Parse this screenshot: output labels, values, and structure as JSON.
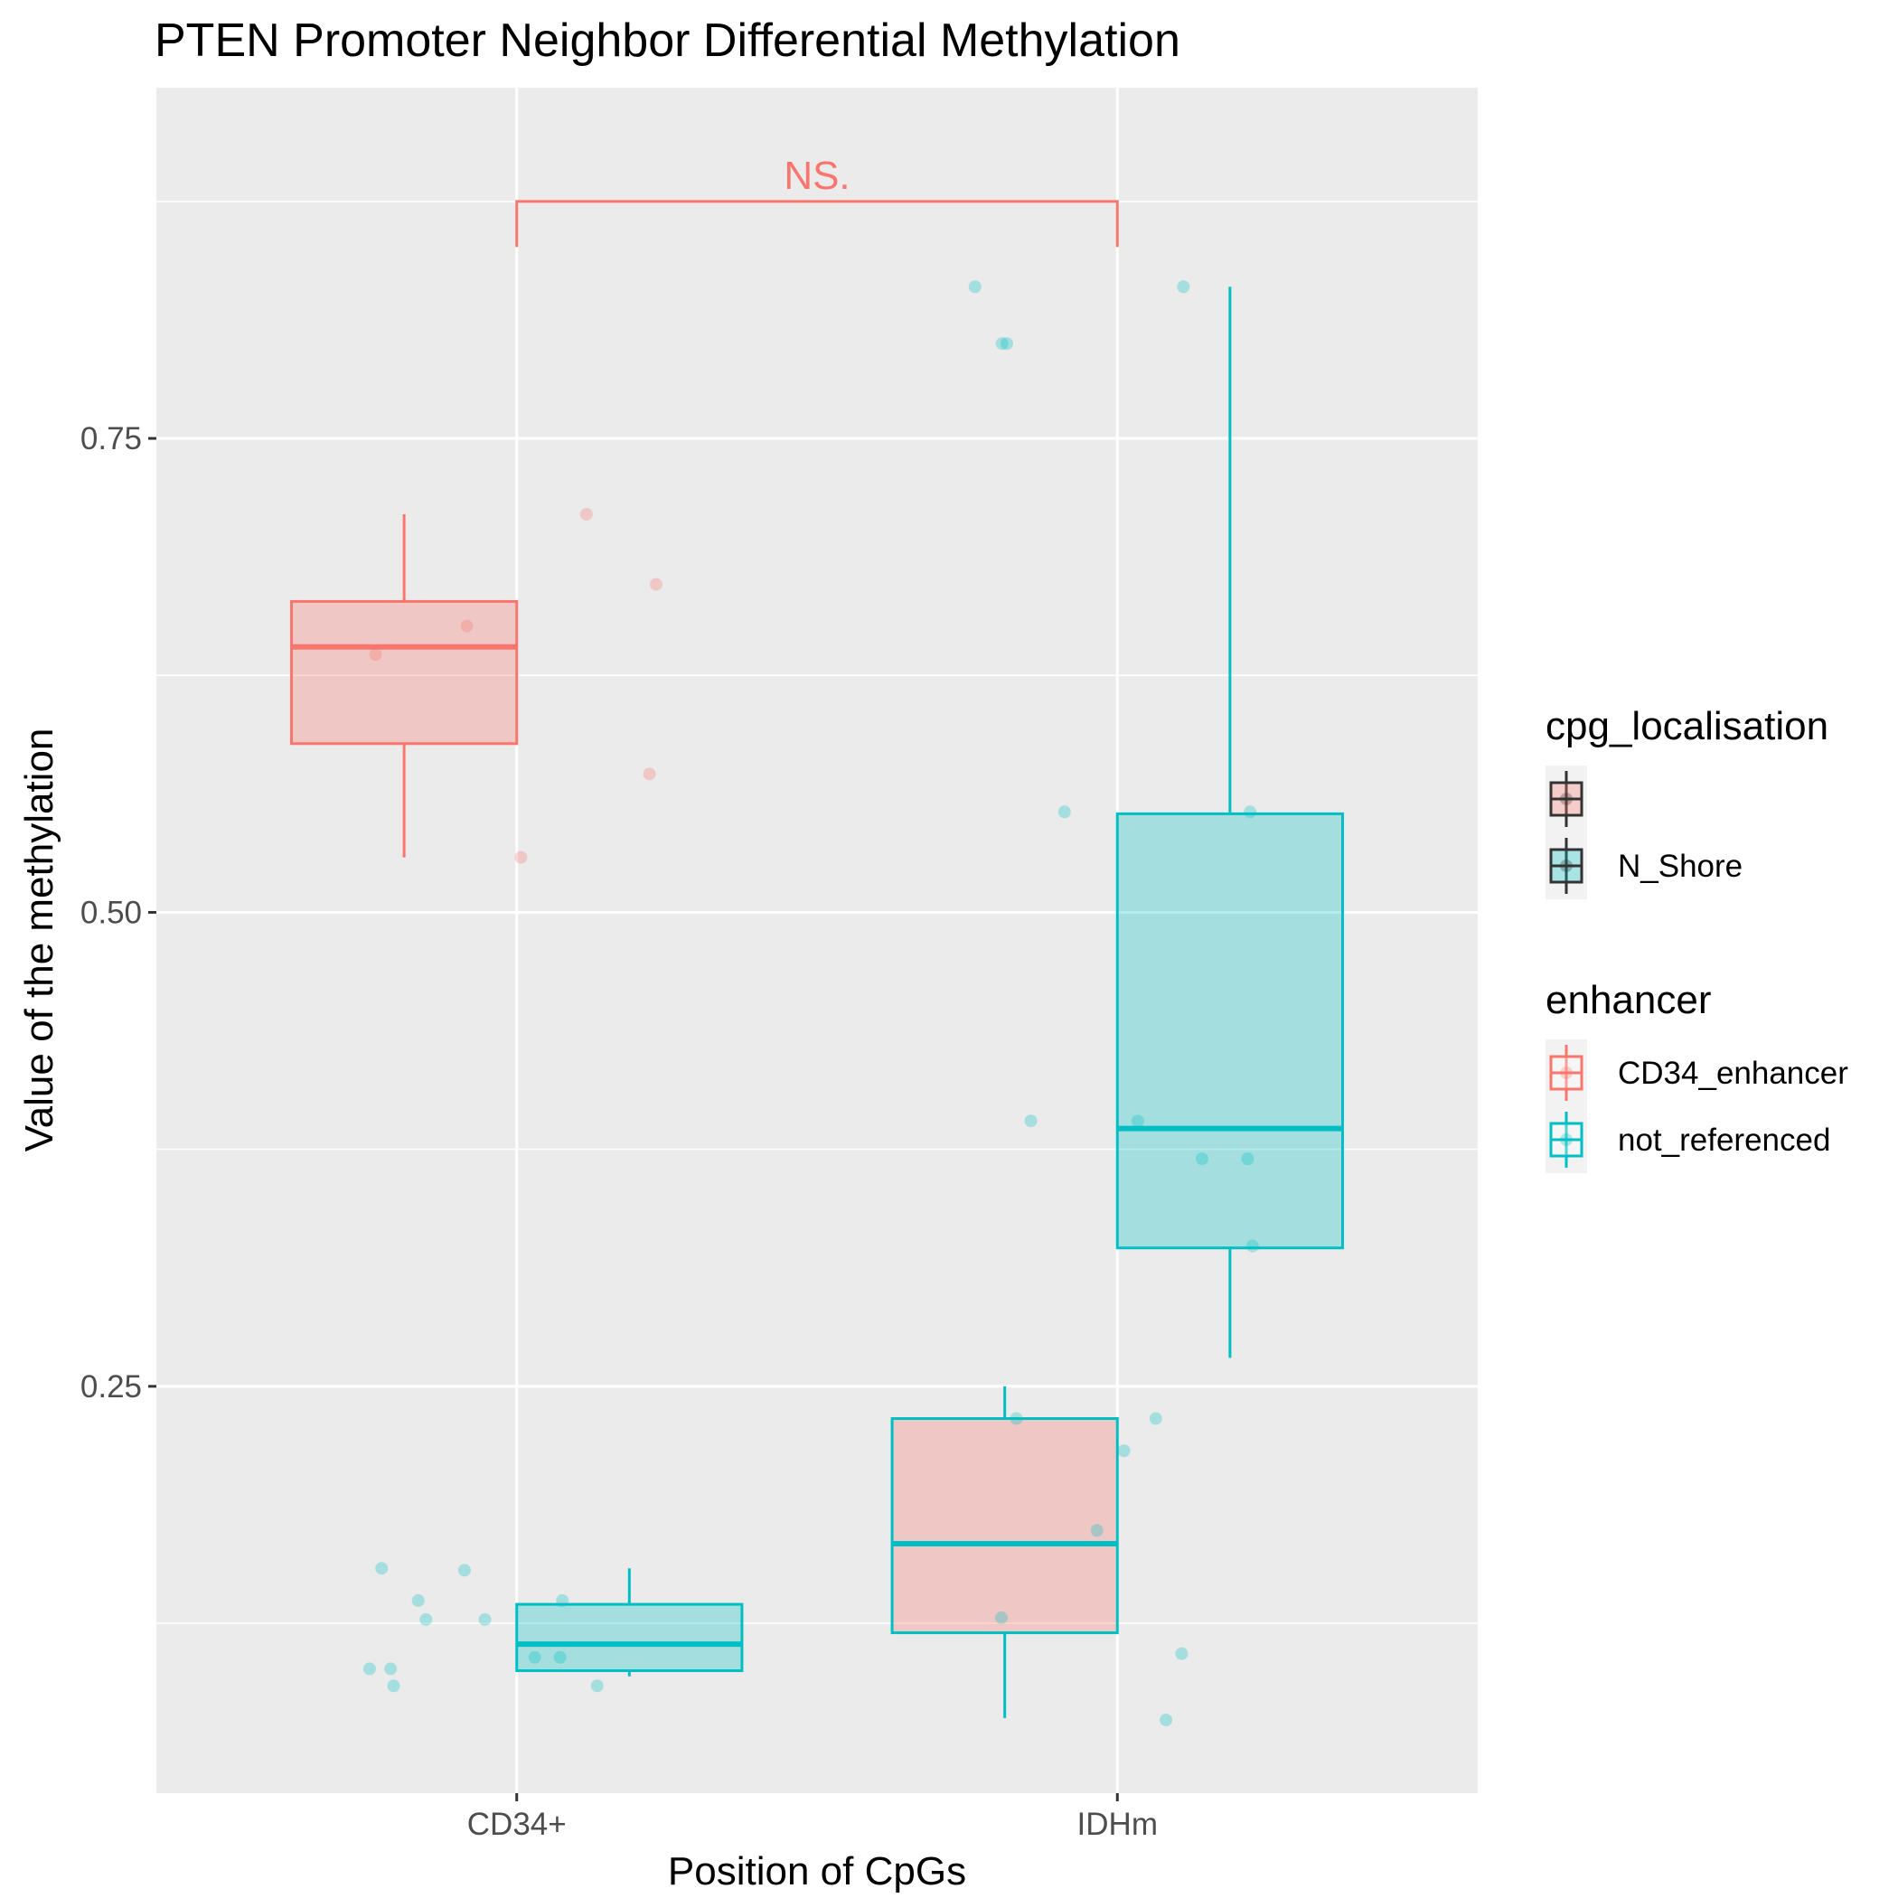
{
  "chart_data": {
    "type": "box",
    "title": "PTEN Promoter Neighbor Differential Methylation",
    "xlabel": "Position of CpGs",
    "ylabel": "Value of the methylation",
    "categories": [
      "CD34+",
      "IDHm"
    ],
    "ylim": [
      0.0354,
      0.935
    ],
    "y_ticks": [
      0.25,
      0.5,
      0.75
    ],
    "y_tick_labels": [
      "0.25",
      "0.50",
      "0.75"
    ],
    "y_minor_ticks": [
      0.125,
      0.375,
      0.625,
      0.875
    ],
    "grid": true,
    "legend_position": "right",
    "colors": {
      "CD34_enhancer": "#F8766D",
      "not_referenced": "#00BFC4",
      "neutral": "#333333"
    },
    "legends": [
      {
        "title": "cpg_localisation",
        "items": [
          {
            "label": "",
            "fill": "#F8766D"
          },
          {
            "label": "N_Shore",
            "fill": "#00BFC4"
          }
        ]
      },
      {
        "title": "enhancer",
        "items": [
          {
            "label": "CD34_enhancer",
            "color": "#F8766D"
          },
          {
            "label": "not_referenced",
            "color": "#00BFC4"
          }
        ]
      }
    ],
    "boxes": [
      {
        "category": "CD34+",
        "group": 0,
        "fill_key": "CD34_enhancer",
        "line_key": "CD34_enhancer",
        "whisker_low": 0.529,
        "q1": 0.589,
        "median": 0.64,
        "q3": 0.664,
        "whisker_high": 0.71
      },
      {
        "category": "CD34+",
        "group": 1,
        "fill_key": "not_referenced",
        "line_key": "not_referenced",
        "whisker_low": 0.097,
        "q1": 0.1,
        "median": 0.114,
        "q3": 0.135,
        "whisker_high": 0.154
      },
      {
        "category": "IDHm",
        "group": 0,
        "fill_key": "CD34_enhancer",
        "line_key": "not_referenced",
        "whisker_low": 0.075,
        "q1": 0.12,
        "median": 0.167,
        "q3": 0.233,
        "whisker_high": 0.25
      },
      {
        "category": "IDHm",
        "group": 1,
        "fill_key": "not_referenced",
        "line_key": "not_referenced",
        "whisker_low": 0.265,
        "q1": 0.323,
        "median": 0.386,
        "q3": 0.552,
        "whisker_high": 0.83
      }
    ],
    "points": [
      {
        "x": 0.765,
        "y": 0.636,
        "color_key": "CD34_enhancer"
      },
      {
        "x": 0.917,
        "y": 0.651,
        "color_key": "CD34_enhancer"
      },
      {
        "x": 1.007,
        "y": 0.529,
        "color_key": "CD34_enhancer"
      },
      {
        "x": 1.116,
        "y": 0.71,
        "color_key": "CD34_enhancer"
      },
      {
        "x": 1.221,
        "y": 0.573,
        "color_key": "CD34_enhancer"
      },
      {
        "x": 1.232,
        "y": 0.673,
        "color_key": "CD34_enhancer"
      },
      {
        "x": 0.775,
        "y": 0.154,
        "color_key": "not_referenced"
      },
      {
        "x": 0.755,
        "y": 0.101,
        "color_key": "not_referenced"
      },
      {
        "x": 0.79,
        "y": 0.101,
        "color_key": "not_referenced"
      },
      {
        "x": 0.795,
        "y": 0.092,
        "color_key": "not_referenced"
      },
      {
        "x": 0.836,
        "y": 0.137,
        "color_key": "not_referenced"
      },
      {
        "x": 0.849,
        "y": 0.127,
        "color_key": "not_referenced"
      },
      {
        "x": 0.913,
        "y": 0.153,
        "color_key": "not_referenced"
      },
      {
        "x": 0.947,
        "y": 0.127,
        "color_key": "not_referenced"
      },
      {
        "x": 1.03,
        "y": 0.107,
        "color_key": "not_referenced"
      },
      {
        "x": 1.072,
        "y": 0.107,
        "color_key": "not_referenced"
      },
      {
        "x": 1.076,
        "y": 0.137,
        "color_key": "not_referenced"
      },
      {
        "x": 1.134,
        "y": 0.092,
        "color_key": "not_referenced"
      },
      {
        "x": 1.763,
        "y": 0.83,
        "color_key": "not_referenced"
      },
      {
        "x": 1.808,
        "y": 0.8,
        "color_key": "not_referenced"
      },
      {
        "x": 1.816,
        "y": 0.8,
        "color_key": "not_referenced"
      },
      {
        "x": 1.807,
        "y": 0.128,
        "color_key": "not_referenced"
      },
      {
        "x": 1.832,
        "y": 0.233,
        "color_key": "not_referenced"
      },
      {
        "x": 1.856,
        "y": 0.39,
        "color_key": "not_referenced"
      },
      {
        "x": 1.912,
        "y": 0.553,
        "color_key": "not_referenced"
      },
      {
        "x": 1.966,
        "y": 0.174,
        "color_key": "not_referenced"
      },
      {
        "x": 2.011,
        "y": 0.216,
        "color_key": "not_referenced"
      },
      {
        "x": 2.034,
        "y": 0.39,
        "color_key": "not_referenced"
      },
      {
        "x": 2.064,
        "y": 0.233,
        "color_key": "not_referenced"
      },
      {
        "x": 2.081,
        "y": 0.074,
        "color_key": "not_referenced"
      },
      {
        "x": 2.107,
        "y": 0.109,
        "color_key": "not_referenced"
      },
      {
        "x": 2.11,
        "y": 0.83,
        "color_key": "not_referenced"
      },
      {
        "x": 2.141,
        "y": 0.37,
        "color_key": "not_referenced"
      },
      {
        "x": 2.217,
        "y": 0.37,
        "color_key": "not_referenced"
      },
      {
        "x": 2.221,
        "y": 0.553,
        "color_key": "not_referenced"
      },
      {
        "x": 2.225,
        "y": 0.324,
        "color_key": "not_referenced"
      }
    ],
    "annotation": {
      "text": "NS.",
      "x_from": 1,
      "x_to": 2,
      "y_bracket": 0.875,
      "y_tail": 0.851,
      "color_key": "CD34_enhancer"
    }
  }
}
